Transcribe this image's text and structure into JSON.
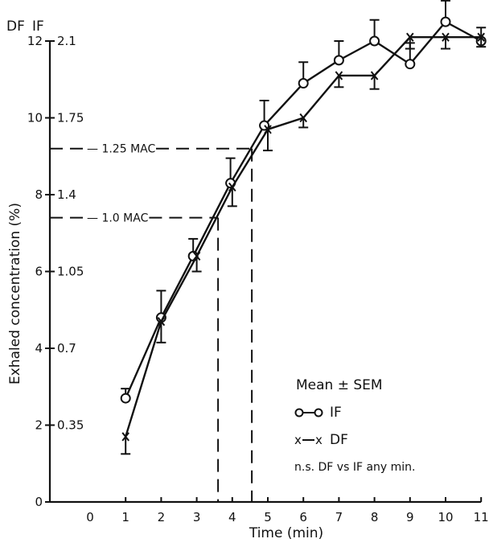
{
  "chart_data": {
    "type": "line",
    "xlabel": "Time (min)",
    "ylabel": "Exhaled concentration (%)",
    "header_labels": [
      "DF",
      "IF"
    ],
    "x_ticks": [
      0,
      1,
      2,
      3,
      4,
      5,
      6,
      7,
      8,
      9,
      10,
      11
    ],
    "xlim": [
      0,
      11
    ],
    "ylim": [
      0,
      12
    ],
    "y_ticks_df": [
      0,
      2,
      4,
      6,
      8,
      10,
      12
    ],
    "y_ticks_if": [
      "0.35",
      "0.7",
      "1.05",
      "1.4",
      "1.75",
      "2.1"
    ],
    "y_ticks_if_positions": [
      2,
      4,
      6,
      8,
      10,
      12
    ],
    "grid": false,
    "series": [
      {
        "name": "IF",
        "marker": "circle",
        "x": [
          1,
          2,
          2.9,
          3.95,
          4.9,
          6,
          7,
          8,
          9,
          10,
          11
        ],
        "y": [
          2.7,
          4.8,
          6.4,
          8.3,
          9.8,
          10.9,
          11.5,
          12.0,
          11.4,
          12.5,
          12.0
        ],
        "err": [
          0.25,
          0.7,
          0.45,
          0.65,
          0.65,
          0.55,
          0.5,
          0.55,
          0.55,
          0.55,
          0.35
        ]
      },
      {
        "name": "DF",
        "marker": "x",
        "x": [
          1,
          2,
          3,
          4,
          5,
          6,
          7,
          8,
          9,
          10,
          11
        ],
        "y": [
          1.7,
          4.7,
          6.4,
          8.2,
          9.7,
          10.0,
          11.1,
          11.1,
          12.1,
          12.1,
          12.1
        ],
        "err": [
          0.45,
          0.55,
          0.4,
          0.5,
          0.55,
          0.25,
          0.3,
          0.35,
          0.3,
          0.3,
          0.25
        ]
      }
    ],
    "reference_lines": [
      {
        "label": "1.0 MAC",
        "y": 7.4,
        "x_end": 3.6
      },
      {
        "label": "1.25 MAC",
        "y": 9.2,
        "x_end": 4.55
      }
    ],
    "legend": {
      "title": "Mean ± SEM",
      "items": [
        {
          "sample": "o—o",
          "label": "IF"
        },
        {
          "sample": "x—x",
          "label": "DF"
        }
      ],
      "note": "n.s. DF vs IF any min.",
      "placement": "lower-right"
    }
  }
}
